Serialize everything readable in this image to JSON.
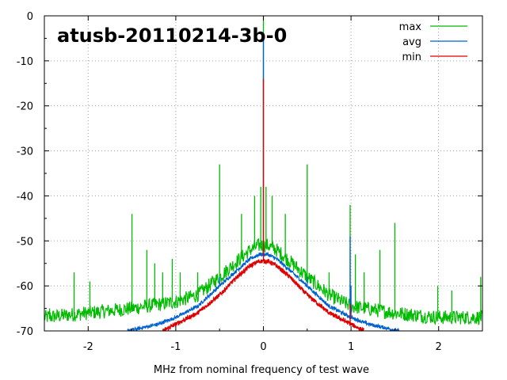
{
  "chart_data": {
    "type": "line",
    "title": "atusb-20110214-3b-0",
    "xlabel": "MHz from nominal frequency of test wave",
    "ylabel": "",
    "xlim": [
      -2.5,
      2.5
    ],
    "ylim": [
      -70,
      0
    ],
    "x_ticks": [
      -2,
      -1,
      0,
      1,
      2
    ],
    "y_ticks": [
      0,
      -10,
      -20,
      -30,
      -40,
      -50,
      -60,
      -70
    ],
    "grid": true,
    "legend_position": "top-right",
    "series": [
      {
        "name": "max",
        "color": "#00bb00",
        "envelope": {
          "x": [
            -2.5,
            -2.0,
            -1.5,
            -1.0,
            -0.75,
            -0.5,
            -0.3,
            -0.15,
            -0.05,
            0.0,
            0.05,
            0.15,
            0.3,
            0.5,
            0.75,
            1.0,
            1.5,
            2.0,
            2.5
          ],
          "y": [
            -67,
            -66,
            -65,
            -63.5,
            -62,
            -58,
            -54.5,
            -52,
            -51,
            -51,
            -51,
            -52,
            -54.5,
            -58,
            -62,
            -64.5,
            -66,
            -67,
            -67
          ]
        },
        "noise": 1.6,
        "spurs": [
          {
            "x": -2.44,
            "y": -65
          },
          {
            "x": -2.16,
            "y": -57
          },
          {
            "x": -1.98,
            "y": -59
          },
          {
            "x": -1.5,
            "y": -44
          },
          {
            "x": -1.33,
            "y": -52
          },
          {
            "x": -1.24,
            "y": -55
          },
          {
            "x": -1.15,
            "y": -57
          },
          {
            "x": -1.04,
            "y": -54
          },
          {
            "x": -0.95,
            "y": -57
          },
          {
            "x": -0.75,
            "y": -57
          },
          {
            "x": -0.5,
            "y": -33
          },
          {
            "x": -0.25,
            "y": -44
          },
          {
            "x": -0.1,
            "y": -40
          },
          {
            "x": -0.03,
            "y": -38
          },
          {
            "x": 0.0,
            "y": 0
          },
          {
            "x": 0.03,
            "y": -38
          },
          {
            "x": 0.1,
            "y": -40
          },
          {
            "x": 0.25,
            "y": -44
          },
          {
            "x": 0.5,
            "y": -33
          },
          {
            "x": 0.75,
            "y": -57
          },
          {
            "x": 0.99,
            "y": -42
          },
          {
            "x": 1.05,
            "y": -53
          },
          {
            "x": 1.15,
            "y": -57
          },
          {
            "x": 1.33,
            "y": -52
          },
          {
            "x": 1.5,
            "y": -46
          },
          {
            "x": 1.99,
            "y": -60
          },
          {
            "x": 2.15,
            "y": -61
          },
          {
            "x": 2.48,
            "y": -58
          }
        ]
      },
      {
        "name": "avg",
        "color": "#0060d0",
        "envelope": {
          "x": [
            -1.55,
            -1.2,
            -1.0,
            -0.75,
            -0.5,
            -0.3,
            -0.15,
            -0.05,
            0.0,
            0.05,
            0.15,
            0.3,
            0.5,
            0.75,
            1.0,
            1.2,
            1.55
          ],
          "y": [
            -70,
            -68.5,
            -67,
            -64.5,
            -60,
            -56.5,
            -54,
            -53,
            -53,
            -53,
            -54,
            -56.5,
            -60,
            -64.5,
            -67,
            -68.5,
            -70
          ]
        },
        "noise": 0.4,
        "spurs": [
          {
            "x": -0.5,
            "y": -58
          },
          {
            "x": 0.0,
            "y": -5
          },
          {
            "x": 0.5,
            "y": -58
          },
          {
            "x": 0.99,
            "y": -49
          },
          {
            "x": 1.0,
            "y": -60
          }
        ]
      },
      {
        "name": "min",
        "color": "#dd0000",
        "envelope": {
          "x": [
            -1.15,
            -1.0,
            -0.75,
            -0.5,
            -0.3,
            -0.15,
            -0.05,
            0.0,
            0.05,
            0.15,
            0.3,
            0.5,
            0.75,
            1.0,
            1.15
          ],
          "y": [
            -70,
            -68.5,
            -66,
            -62,
            -58,
            -55.5,
            -54.5,
            -54.5,
            -54.5,
            -55.5,
            -58,
            -62,
            -66,
            -68.5,
            -70
          ]
        },
        "noise": 0.5,
        "spurs": [
          {
            "x": 0.0,
            "y": -14
          },
          {
            "x": 0.99,
            "y": -64
          }
        ]
      }
    ]
  }
}
